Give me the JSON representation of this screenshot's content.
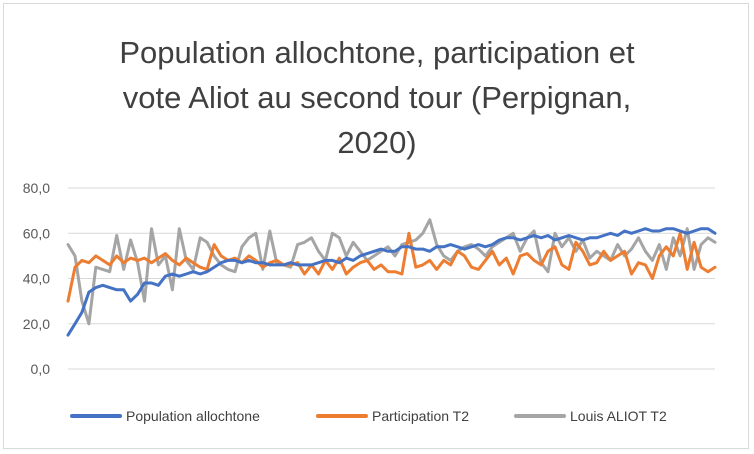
{
  "chart_data": {
    "type": "line",
    "title_lines": [
      "Population allochtone, participation et",
      "vote Aliot au second tour (Perpignan,",
      "2020)"
    ],
    "ylim": [
      0,
      80
    ],
    "y_ticks": [
      "0,0",
      "20,0",
      "40,0",
      "60,0",
      "80,0"
    ],
    "y_tick_values": [
      0,
      20,
      40,
      60,
      80
    ],
    "grid": true,
    "legend_position": "bottom",
    "series": [
      {
        "name": "Population allochtone",
        "color": "#4472c4",
        "values": [
          15,
          20,
          25,
          34,
          36,
          37,
          36,
          35,
          35,
          30,
          33,
          38,
          38,
          37,
          41,
          42,
          41,
          42,
          43,
          42,
          43,
          45,
          47,
          48,
          48,
          47,
          48,
          47,
          47,
          46,
          46,
          46,
          47,
          46,
          46,
          46,
          47,
          48,
          48,
          47,
          49,
          48,
          50,
          51,
          52,
          53,
          52,
          52,
          54,
          54,
          53,
          53,
          52,
          54,
          54,
          55,
          54,
          53,
          54,
          55,
          54,
          55,
          57,
          58,
          58,
          57,
          58,
          59,
          58,
          59,
          57,
          58,
          59,
          58,
          57,
          58,
          58,
          59,
          60,
          59,
          61,
          60,
          61,
          62,
          61,
          61,
          62,
          62,
          61,
          60,
          61,
          62,
          62,
          60
        ]
      },
      {
        "name": "Participation T2",
        "color": "#ed7d31",
        "values": [
          30,
          45,
          48,
          47,
          50,
          48,
          46,
          50,
          47,
          49,
          48,
          49,
          47,
          49,
          51,
          48,
          46,
          49,
          47,
          45,
          44,
          55,
          50,
          48,
          49,
          47,
          50,
          48,
          45,
          47,
          48,
          46,
          46,
          47,
          42,
          46,
          42,
          48,
          44,
          49,
          42,
          45,
          47,
          48,
          44,
          46,
          43,
          43,
          42,
          60,
          45,
          46,
          48,
          44,
          48,
          46,
          52,
          50,
          45,
          44,
          48,
          52,
          46,
          49,
          42,
          50,
          51,
          48,
          46,
          52,
          54,
          46,
          44,
          56,
          52,
          46,
          47,
          52,
          48,
          50,
          52,
          42,
          47,
          46,
          40,
          50,
          54,
          50,
          60,
          44,
          56,
          45,
          43,
          45
        ]
      },
      {
        "name": "Louis ALIOT T2",
        "color": "#a5a5a5",
        "values": [
          55,
          50,
          30,
          20,
          45,
          44,
          43,
          59,
          44,
          57,
          47,
          30,
          62,
          46,
          50,
          35,
          62,
          48,
          44,
          58,
          56,
          50,
          46,
          44,
          43,
          54,
          58,
          60,
          44,
          61,
          47,
          46,
          45,
          55,
          56,
          58,
          52,
          48,
          60,
          58,
          50,
          56,
          52,
          48,
          50,
          52,
          54,
          50,
          55,
          56,
          57,
          60,
          66,
          55,
          50,
          48,
          52,
          54,
          55,
          53,
          50,
          54,
          56,
          58,
          60,
          52,
          58,
          61,
          47,
          43,
          60,
          54,
          58,
          52,
          57,
          49,
          52,
          50,
          48,
          55,
          50,
          53,
          58,
          52,
          48,
          55,
          44,
          58,
          50,
          62,
          44,
          55,
          58,
          56
        ]
      }
    ]
  }
}
